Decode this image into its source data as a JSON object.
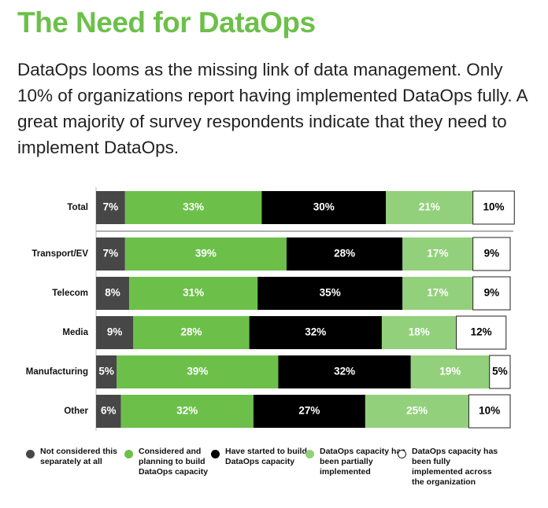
{
  "chart_data": {
    "type": "stacked-bar",
    "orientation": "horizontal",
    "title": "The Need for DataOps",
    "subtitle": "DataOps looms as the missing link of data management. Only 10% of organizations report having implemented DataOps fully. A great majority of survey respondents indicate that they need to implement DataOps.",
    "categories": [
      "Total",
      "Transport/EV",
      "Telecom",
      "Media",
      "Manufacturing",
      "Other"
    ],
    "series": [
      {
        "name": "Not considered this separately at all",
        "color": "#474747",
        "text_color": "#ffffff",
        "values": [
          7,
          7,
          8,
          9,
          5,
          6
        ],
        "value_labels": [
          "7%",
          "7%",
          "8%",
          "9%",
          "5%",
          "6%"
        ]
      },
      {
        "name": "Considered and planning to build DataOps capacity",
        "color": "#6cc04a",
        "text_color": "#ffffff",
        "values": [
          33,
          39,
          31,
          28,
          39,
          32
        ],
        "value_labels": [
          "33%",
          "39%",
          "31%",
          "28%",
          "39%",
          "32%"
        ]
      },
      {
        "name": "Have started to build DataOps capacity",
        "color": "#000000",
        "text_color": "#ffffff",
        "values": [
          30,
          28,
          35,
          32,
          32,
          27
        ],
        "value_labels": [
          "30%",
          "28%",
          "35%",
          "32%",
          "32%",
          "27%"
        ]
      },
      {
        "name": "DataOps capacity has been partially implemented",
        "color": "#93d07c",
        "text_color": "#ffffff",
        "values": [
          21,
          17,
          17,
          18,
          19,
          25
        ],
        "value_labels": [
          "21%",
          "17%",
          "17%",
          "18%",
          "19%",
          "25%"
        ]
      },
      {
        "name": "DataOps capacity has been fully implemented across the organization",
        "color": "#ffffff",
        "text_color": "#000000",
        "values": [
          10,
          9,
          9,
          12,
          5,
          10
        ],
        "value_labels": [
          "10%",
          "9%",
          "9%",
          "12%",
          "5%",
          "10%"
        ]
      }
    ]
  }
}
